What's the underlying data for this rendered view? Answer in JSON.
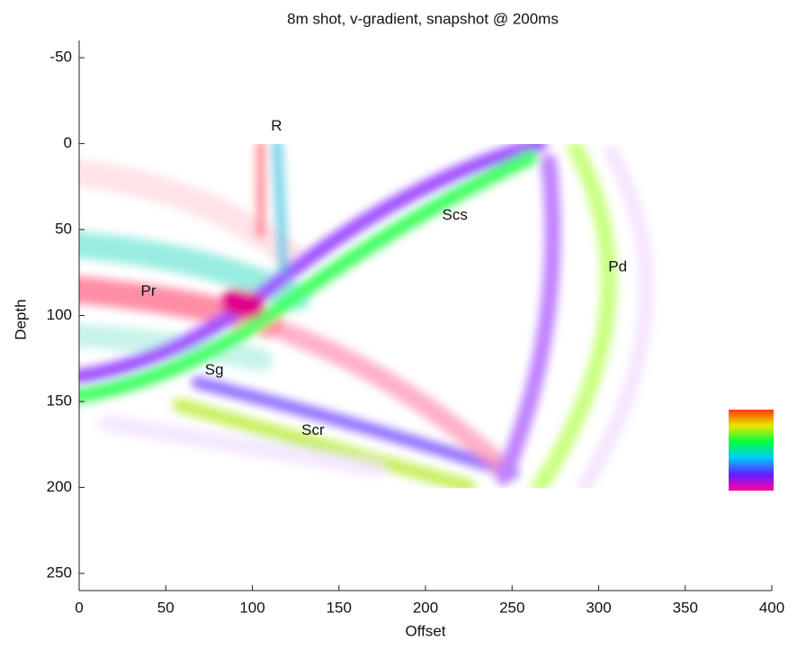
{
  "chart_data": {
    "type": "image",
    "title": "8m shot, v-gradient, snapshot @ 200ms",
    "x_label": "Offset",
    "y_label": "Depth",
    "xlim": [
      0,
      400
    ],
    "xticks": [
      0,
      50,
      100,
      150,
      200,
      250,
      300,
      350,
      400
    ],
    "ylim": [
      -60,
      260
    ],
    "yticks": [
      -50,
      0,
      50,
      100,
      150,
      200,
      250
    ],
    "y_reversed": true,
    "annotations": [
      {
        "text": "R",
        "x": 114,
        "y": -10
      },
      {
        "text": "Scs",
        "x": 217,
        "y": 42
      },
      {
        "text": "Pd",
        "x": 311,
        "y": 72
      },
      {
        "text": "Pr",
        "x": 40,
        "y": 86
      },
      {
        "text": "Sg",
        "x": 78,
        "y": 132
      },
      {
        "text": "Scr",
        "x": 135,
        "y": 167
      }
    ]
  }
}
